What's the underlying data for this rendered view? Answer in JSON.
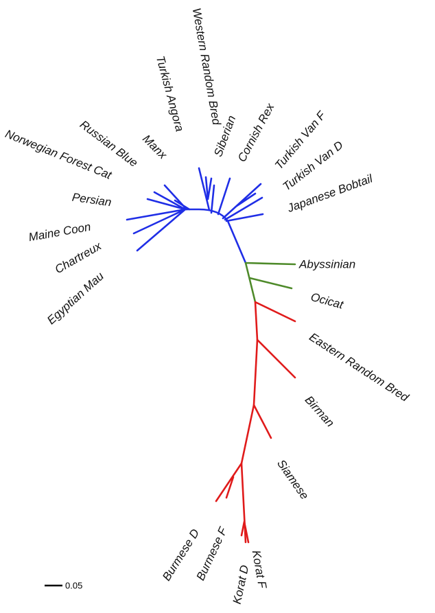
{
  "tree": {
    "leaves": [
      "Western Random Bred",
      "Turkish Angora",
      "Siberian",
      "Cornish Rex",
      "Turkish Van F",
      "Turkish Van D",
      "Japanese Bobtail",
      "Manx",
      "Russian Blue",
      "Norwegian Forest Cat",
      "Persian",
      "Maine Coon",
      "Chartreux",
      "Egyptian Mau",
      "Abyssinian",
      "Ocicat",
      "Eastern Random Bred",
      "Birman",
      "Siamese",
      "Burmese D",
      "Burmese F",
      "Korat D",
      "Korat F"
    ],
    "scale_label": "0.05"
  }
}
